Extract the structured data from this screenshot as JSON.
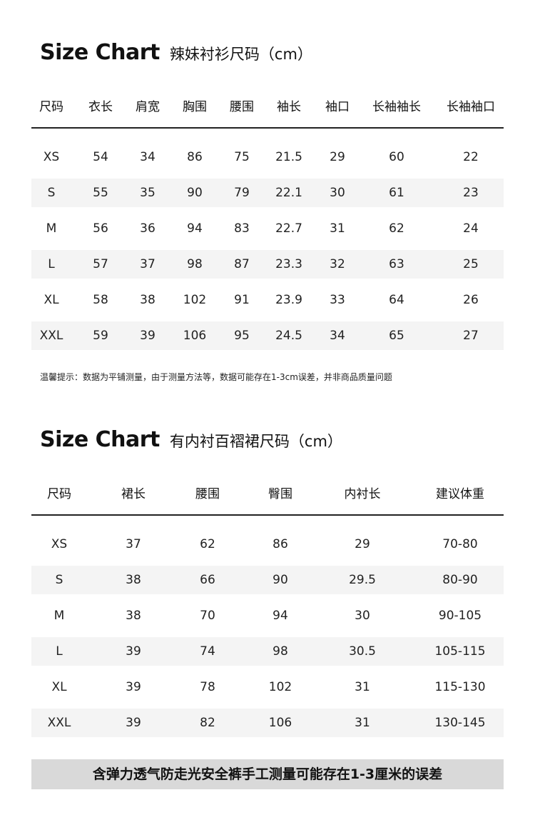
{
  "shirt": {
    "title_en": "Size Chart",
    "title_cn": "辣妹衬衫尺码（cm）",
    "headers": [
      "尺码",
      "衣长",
      "肩宽",
      "胸围",
      "腰围",
      "袖长",
      "袖口",
      "长袖袖长",
      "长袖袖口"
    ],
    "rows": [
      [
        "XS",
        "54",
        "34",
        "86",
        "75",
        "21.5",
        "29",
        "60",
        "22"
      ],
      [
        "S",
        "55",
        "35",
        "90",
        "79",
        "22.1",
        "30",
        "61",
        "23"
      ],
      [
        "M",
        "56",
        "36",
        "94",
        "83",
        "22.7",
        "31",
        "62",
        "24"
      ],
      [
        "L",
        "57",
        "37",
        "98",
        "87",
        "23.3",
        "32",
        "63",
        "25"
      ],
      [
        "XL",
        "58",
        "38",
        "102",
        "91",
        "23.9",
        "33",
        "64",
        "26"
      ],
      [
        "XXL",
        "59",
        "39",
        "106",
        "95",
        "24.5",
        "34",
        "65",
        "27"
      ]
    ],
    "note": "温馨提示：数据为平铺测量，由于测量方法等，数据可能存在1-3cm误差，并非商品质量问题"
  },
  "skirt": {
    "title_en": "Size Chart",
    "title_cn": "有内衬百褶裙尺码（cm）",
    "headers": [
      "尺码",
      "裙长",
      "腰围",
      "臀围",
      "内衬长",
      "建议体重"
    ],
    "rows": [
      [
        "XS",
        "37",
        "62",
        "86",
        "29",
        "70-80"
      ],
      [
        "S",
        "38",
        "66",
        "90",
        "29.5",
        "80-90"
      ],
      [
        "M",
        "38",
        "70",
        "94",
        "30",
        "90-105"
      ],
      [
        "L",
        "39",
        "74",
        "98",
        "30.5",
        "105-115"
      ],
      [
        "XL",
        "39",
        "78",
        "102",
        "31",
        "115-130"
      ],
      [
        "XXL",
        "39",
        "82",
        "106",
        "31",
        "130-145"
      ]
    ],
    "banner": "含弹力透气防走光安全裤手工测量可能存在1-3厘米的误差"
  },
  "colors": {
    "row_shade": "#f4f4f4",
    "banner_bg": "#d9d9d9"
  }
}
